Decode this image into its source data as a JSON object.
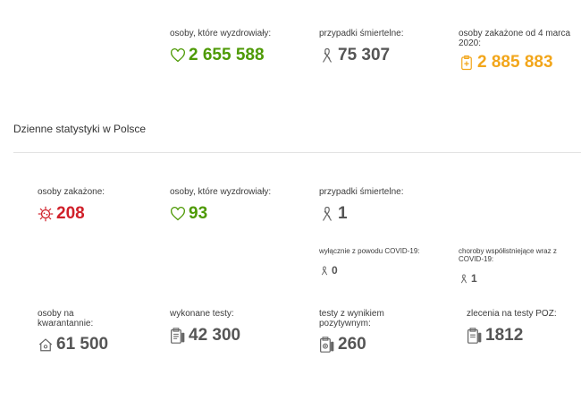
{
  "summary": {
    "recovered": {
      "label": "osoby, które wyzdrowiały:",
      "value": "2 655 588",
      "icon": "heart-icon"
    },
    "deaths": {
      "label": "przypadki śmiertelne:",
      "value": "75 307",
      "icon": "ribbon-icon"
    },
    "infected": {
      "label": "osoby zakażone od 4 marca 2020:",
      "value": "2 885 883",
      "icon": "medical-clipboard-icon"
    }
  },
  "daily": {
    "heading": "Dzienne statystyki w Polsce",
    "infected": {
      "label": "osoby zakażone:",
      "value": "208",
      "icon": "virus-icon"
    },
    "recovered": {
      "label": "osoby, które wyzdrowiały:",
      "value": "93",
      "icon": "heart-icon"
    },
    "deaths": {
      "label": "przypadki śmiertelne:",
      "value": "1",
      "icon": "ribbon-icon"
    },
    "covid_only": {
      "label": "wyłącznie z powodu COVID-19:",
      "value": "0",
      "icon": "ribbon-icon"
    },
    "comorbid": {
      "label": "choroby współistniejące wraz z COVID-19:",
      "value": "1",
      "icon": "ribbon-icon"
    },
    "quarantine": {
      "label": "osoby na kwarantannie:",
      "value": "61 500",
      "icon": "house-icon"
    },
    "tests": {
      "label": "wykonane testy:",
      "value": "42 300",
      "icon": "clipboard-test-icon"
    },
    "positive_tests": {
      "label": "testy z wynikiem pozytywnym:",
      "value": "260",
      "icon": "positive-test-icon"
    },
    "poz_orders": {
      "label": "zlecenia na testy POZ:",
      "value": "1812",
      "icon": "poz-order-icon"
    }
  },
  "colors": {
    "green": "#4e9a06",
    "gray": "#555555",
    "orange": "#f2a61b",
    "red": "#d0202a"
  }
}
